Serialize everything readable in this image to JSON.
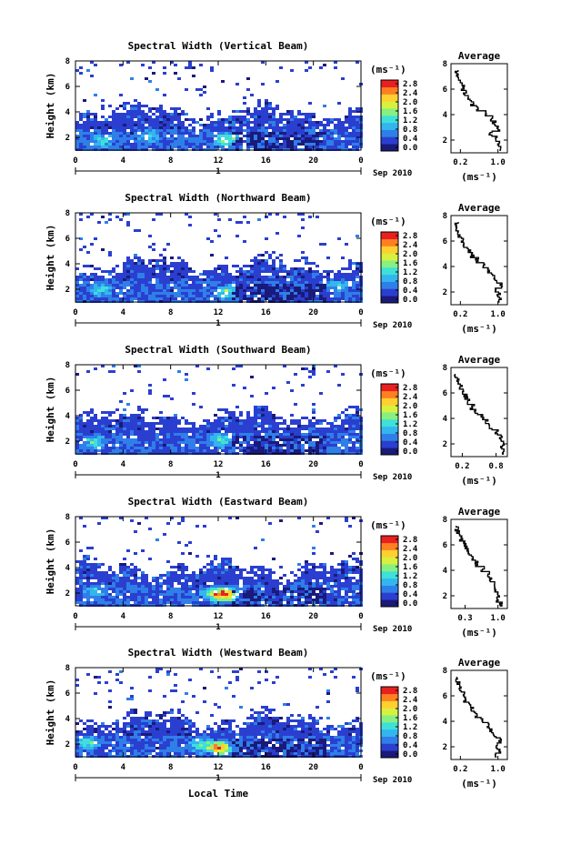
{
  "figure": {
    "xlabel": "Local Time",
    "date_label": "Sep 2010",
    "day_label": "1",
    "colorbar_unit": "(ms⁻¹)",
    "avg_title": "Average",
    "avg_xlabel": "(ms⁻¹)",
    "colormap": [
      "#1a1a7a",
      "#2a3fd0",
      "#2f7fe8",
      "#33b6f0",
      "#3fe0d8",
      "#86f080",
      "#d8f040",
      "#ffd030",
      "#ff8020",
      "#e82020"
    ]
  },
  "chart_data": [
    {
      "type": "heatmap",
      "title": "Spectral Width (Vertical Beam)",
      "xlabel": "",
      "ylabel": "Height (km)",
      "x_ticks": [
        "0",
        "4",
        "8",
        "12",
        "16",
        "20",
        "0"
      ],
      "xlim": [
        0,
        24
      ],
      "y_ticks": [
        "2",
        "4",
        "6",
        "8"
      ],
      "ylim": [
        1,
        8
      ],
      "colorbar": {
        "ticks": [
          "2.8",
          "2.4",
          "2.0",
          "1.6",
          "1.2",
          "0.8",
          "0.4",
          "0.0"
        ],
        "range": [
          0,
          2.8
        ]
      },
      "average": {
        "type": "line",
        "title": "Average",
        "xlabel": "(ms⁻¹)",
        "x_ticks": [
          "0.2",
          "1.0"
        ],
        "xlim": [
          0,
          1.2
        ],
        "y_ticks": [
          "2",
          "4",
          "6",
          "8"
        ],
        "ylim": [
          1,
          8
        ],
        "height": [
          1.2,
          1.6,
          2.0,
          2.4,
          2.8,
          3.2,
          3.6,
          4.0,
          4.4,
          4.8,
          5.2,
          5.6,
          6.0,
          6.4,
          6.8,
          7.2
        ],
        "value": [
          1.05,
          1.0,
          0.98,
          0.85,
          1.0,
          0.92,
          0.85,
          0.75,
          0.55,
          0.45,
          0.38,
          0.3,
          0.25,
          0.2,
          0.15,
          0.12
        ]
      },
      "seed": 11,
      "hot": [
        [
          6,
          2.2,
          0.9
        ],
        [
          12.5,
          1.9,
          1.6
        ],
        [
          2,
          1.8,
          0.8
        ]
      ]
    },
    {
      "type": "heatmap",
      "title": "Spectral Width (Northward Beam)",
      "xlabel": "",
      "ylabel": "Height (km)",
      "x_ticks": [
        "0",
        "4",
        "8",
        "12",
        "16",
        "20",
        "0"
      ],
      "xlim": [
        0,
        24
      ],
      "y_ticks": [
        "2",
        "4",
        "6",
        "8"
      ],
      "ylim": [
        1,
        8
      ],
      "colorbar": {
        "ticks": [
          "2.8",
          "2.4",
          "2.0",
          "1.6",
          "1.2",
          "0.8",
          "0.4",
          "0.0"
        ],
        "range": [
          0,
          2.8
        ]
      },
      "average": {
        "type": "line",
        "title": "Average",
        "xlabel": "(ms⁻¹)",
        "x_ticks": [
          "0.2",
          "1.0"
        ],
        "xlim": [
          0,
          1.2
        ],
        "y_ticks": [
          "2",
          "4",
          "6",
          "8"
        ],
        "ylim": [
          1,
          8
        ],
        "height": [
          1.2,
          1.6,
          2.0,
          2.4,
          2.8,
          3.2,
          3.6,
          4.0,
          4.4,
          4.8,
          5.2,
          5.6,
          6.0,
          6.4,
          6.8,
          7.2
        ],
        "value": [
          1.05,
          1.02,
          0.98,
          1.05,
          0.95,
          0.9,
          0.8,
          0.7,
          0.55,
          0.45,
          0.38,
          0.3,
          0.25,
          0.18,
          0.14,
          0.12
        ]
      },
      "seed": 23,
      "hot": [
        [
          2,
          2.0,
          0.9
        ],
        [
          12.5,
          1.9,
          1.2
        ],
        [
          22,
          2.4,
          0.6
        ]
      ]
    },
    {
      "type": "heatmap",
      "title": "Spectral Width (Southward Beam)",
      "xlabel": "",
      "ylabel": "Height (km)",
      "x_ticks": [
        "0",
        "4",
        "8",
        "12",
        "16",
        "20",
        "0"
      ],
      "xlim": [
        0,
        24
      ],
      "y_ticks": [
        "2",
        "4",
        "6",
        "8"
      ],
      "ylim": [
        1,
        8
      ],
      "colorbar": {
        "ticks": [
          "2.8",
          "2.4",
          "2.0",
          "1.6",
          "1.2",
          "0.8",
          "0.4",
          "0.0"
        ],
        "range": [
          0,
          2.8
        ]
      },
      "average": {
        "type": "line",
        "title": "Average",
        "xlabel": "(ms⁻¹)",
        "x_ticks": [
          "0.2",
          "0.8"
        ],
        "xlim": [
          0,
          1.0
        ],
        "y_ticks": [
          "2",
          "4",
          "6",
          "8"
        ],
        "ylim": [
          1,
          8
        ],
        "height": [
          1.2,
          1.6,
          2.0,
          2.4,
          2.8,
          3.2,
          3.6,
          4.0,
          4.4,
          4.8,
          5.2,
          5.6,
          6.0,
          6.4,
          6.8,
          7.2
        ],
        "value": [
          0.95,
          0.9,
          0.92,
          0.88,
          0.8,
          0.72,
          0.65,
          0.55,
          0.45,
          0.38,
          0.32,
          0.26,
          0.22,
          0.18,
          0.14,
          0.1
        ]
      },
      "seed": 37,
      "hot": [
        [
          1.5,
          2.0,
          0.9
        ],
        [
          12,
          2.2,
          1.2
        ]
      ]
    },
    {
      "type": "heatmap",
      "title": "Spectral Width (Eastward Beam)",
      "xlabel": "",
      "ylabel": "Height (km)",
      "x_ticks": [
        "0",
        "4",
        "8",
        "12",
        "16",
        "20",
        "0"
      ],
      "xlim": [
        0,
        24
      ],
      "y_ticks": [
        "2",
        "4",
        "6",
        "8"
      ],
      "ylim": [
        1,
        8
      ],
      "colorbar": {
        "ticks": [
          "2.8",
          "2.4",
          "2.0",
          "1.6",
          "1.2",
          "0.8",
          "0.4",
          "0.0"
        ],
        "range": [
          0,
          2.8
        ]
      },
      "average": {
        "type": "line",
        "title": "Average",
        "xlabel": "(ms⁻¹)",
        "x_ticks": [
          "0.3",
          "1.0"
        ],
        "xlim": [
          0,
          1.2
        ],
        "y_ticks": [
          "2",
          "4",
          "6",
          "8"
        ],
        "ylim": [
          1,
          8
        ],
        "height": [
          1.2,
          1.6,
          2.0,
          2.4,
          2.8,
          3.2,
          3.6,
          4.0,
          4.4,
          4.8,
          5.2,
          5.6,
          6.0,
          6.4,
          6.8,
          7.2
        ],
        "value": [
          1.05,
          0.98,
          1.02,
          0.95,
          0.9,
          0.85,
          0.8,
          0.68,
          0.55,
          0.48,
          0.4,
          0.34,
          0.28,
          0.22,
          0.16,
          0.12
        ]
      },
      "seed": 51,
      "hot": [
        [
          1.5,
          2.2,
          0.8
        ],
        [
          11.5,
          2.0,
          1.4
        ],
        [
          12.5,
          2.0,
          2.8
        ]
      ]
    },
    {
      "type": "heatmap",
      "title": "Spectral Width (Westward Beam)",
      "xlabel": "Local Time",
      "ylabel": "Height (km)",
      "x_ticks": [
        "0",
        "4",
        "8",
        "12",
        "16",
        "20",
        "0"
      ],
      "xlim": [
        0,
        24
      ],
      "y_ticks": [
        "2",
        "4",
        "6",
        "8"
      ],
      "ylim": [
        1,
        8
      ],
      "colorbar": {
        "ticks": [
          "2.8",
          "2.4",
          "2.0",
          "1.6",
          "1.2",
          "0.8",
          "0.4",
          "0.0"
        ],
        "range": [
          0,
          2.8
        ]
      },
      "average": {
        "type": "line",
        "title": "Average",
        "xlabel": "(ms⁻¹)",
        "x_ticks": [
          "0.2",
          "1.0"
        ],
        "xlim": [
          0,
          1.2
        ],
        "y_ticks": [
          "2",
          "4",
          "6",
          "8"
        ],
        "ylim": [
          1,
          8
        ],
        "height": [
          1.2,
          1.6,
          2.0,
          2.4,
          2.8,
          3.2,
          3.6,
          4.0,
          4.4,
          4.8,
          5.2,
          5.6,
          6.0,
          6.4,
          6.8,
          7.2
        ],
        "value": [
          0.98,
          1.02,
          0.95,
          1.05,
          0.92,
          0.85,
          0.78,
          0.66,
          0.55,
          0.46,
          0.38,
          0.3,
          0.25,
          0.2,
          0.15,
          0.1
        ]
      },
      "seed": 67,
      "hot": [
        [
          1,
          2.2,
          1.0
        ],
        [
          12,
          1.8,
          2.8
        ],
        [
          10.5,
          2.0,
          1.3
        ]
      ]
    }
  ]
}
